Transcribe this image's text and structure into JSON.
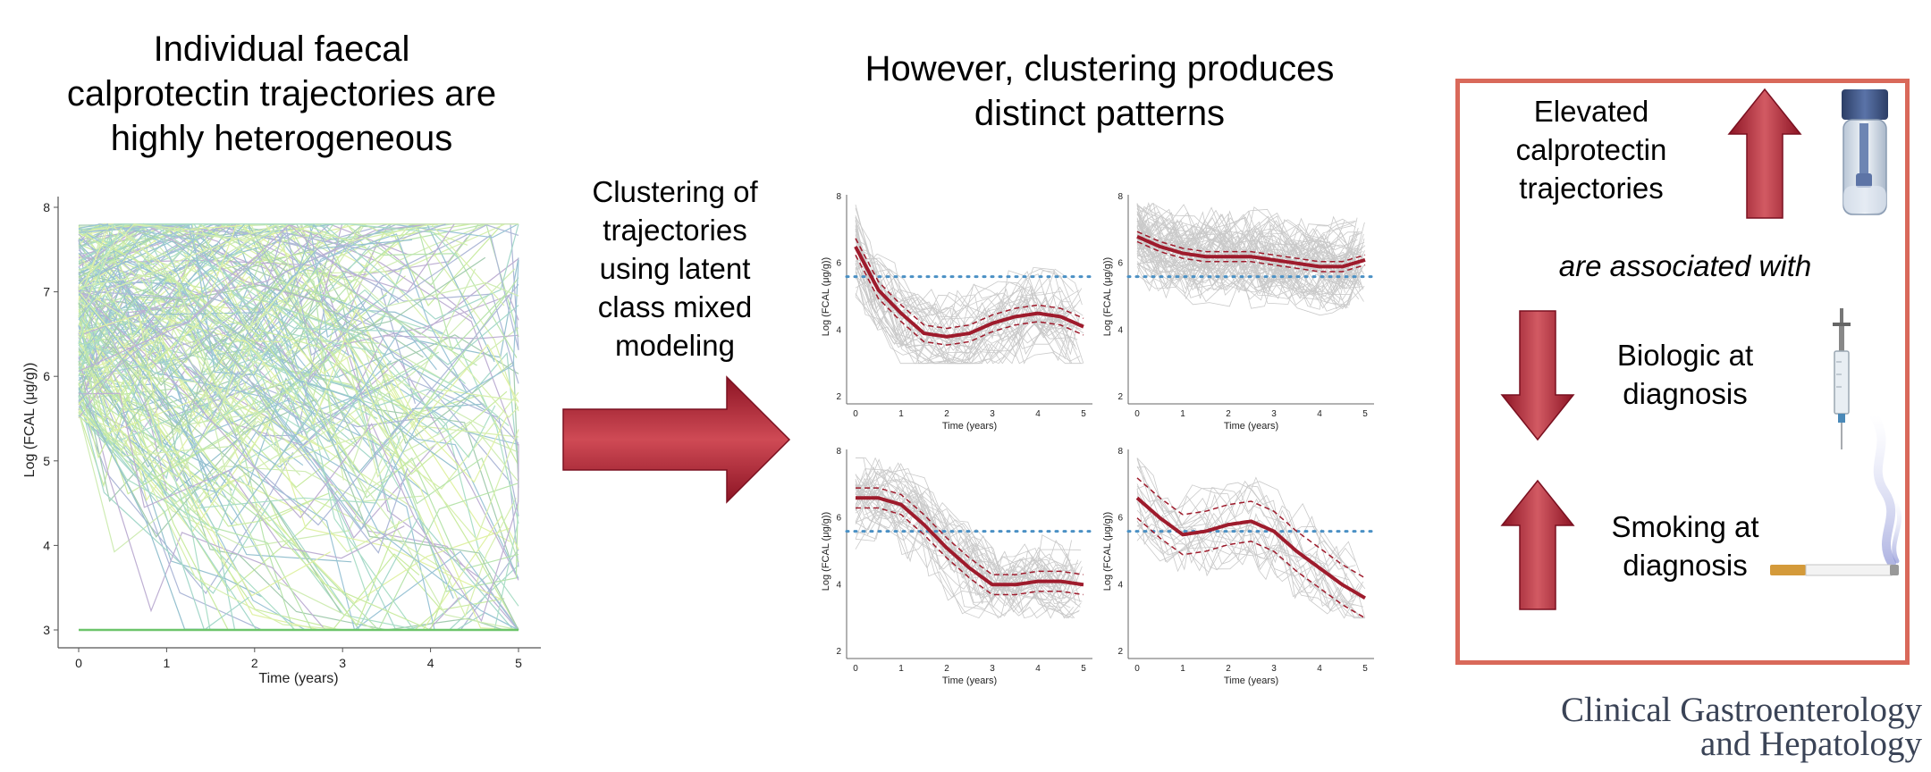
{
  "left": {
    "title_lines": [
      "Individual faecal",
      "calprotectin trajectories are",
      "highly heterogeneous"
    ],
    "chart": {
      "xlabel": "Time (years)",
      "ylabel": "Log (FCAL (μg/g))",
      "xticks": [
        "0",
        "1",
        "2",
        "3",
        "4",
        "5"
      ],
      "yticks": [
        "8",
        "7",
        "6",
        "5",
        "4",
        "3"
      ]
    }
  },
  "middle": {
    "label_lines": [
      "Clustering of",
      "trajectories",
      "using latent",
      "class mixed",
      "modeling"
    ]
  },
  "right_title_lines": [
    "However, clustering produces",
    "distinct patterns"
  ],
  "cluster_axes": {
    "xlabel": "Time (years)",
    "ylabel": "Log (FCAL (μg/g))",
    "xticks": [
      "0",
      "1",
      "2",
      "3",
      "4",
      "5"
    ],
    "yticks": [
      "8",
      "6",
      "4",
      "2"
    ]
  },
  "panel": {
    "elevated_lines": [
      "Elevated",
      "calprotectin",
      "trajectories"
    ],
    "associated": "are associated with",
    "biologic_lines": [
      "Biologic at",
      "diagnosis"
    ],
    "smoking_lines": [
      "Smoking at",
      "diagnosis"
    ],
    "border_color": "#d9695a"
  },
  "journal_lines": [
    "Clinical Gastroenterology",
    "and Hepatology"
  ],
  "colors": {
    "arrow_dark": "#9e1b2c",
    "arrow_light": "#c9454f",
    "fit_line": "#9e1b2c",
    "threshold": "#4a90c4"
  },
  "chart_data": {
    "type": "line",
    "x_range": [
      0,
      5
    ],
    "threshold": 5.6,
    "clusters": [
      {
        "mean": [
          [
            0,
            6.5
          ],
          [
            0.5,
            5.2
          ],
          [
            1,
            4.5
          ],
          [
            1.5,
            3.9
          ],
          [
            2,
            3.8
          ],
          [
            2.5,
            3.9
          ],
          [
            3,
            4.2
          ],
          [
            3.5,
            4.4
          ],
          [
            4,
            4.5
          ],
          [
            4.5,
            4.4
          ],
          [
            5,
            4.1
          ]
        ],
        "band": 0.25
      },
      {
        "mean": [
          [
            0,
            6.8
          ],
          [
            0.5,
            6.5
          ],
          [
            1,
            6.3
          ],
          [
            1.5,
            6.2
          ],
          [
            2,
            6.2
          ],
          [
            2.5,
            6.2
          ],
          [
            3,
            6.1
          ],
          [
            3.5,
            6.0
          ],
          [
            4,
            5.9
          ],
          [
            4.5,
            5.9
          ],
          [
            5,
            6.1
          ]
        ],
        "band": 0.15
      },
      {
        "mean": [
          [
            0,
            6.6
          ],
          [
            0.5,
            6.6
          ],
          [
            1,
            6.4
          ],
          [
            1.5,
            5.8
          ],
          [
            2,
            5.1
          ],
          [
            2.5,
            4.5
          ],
          [
            3,
            4.0
          ],
          [
            3.5,
            4.0
          ],
          [
            4,
            4.1
          ],
          [
            4.5,
            4.1
          ],
          [
            5,
            4.0
          ]
        ],
        "band": 0.3
      },
      {
        "mean": [
          [
            0,
            6.6
          ],
          [
            0.5,
            6.0
          ],
          [
            1,
            5.5
          ],
          [
            1.5,
            5.6
          ],
          [
            2,
            5.8
          ],
          [
            2.5,
            5.9
          ],
          [
            3,
            5.6
          ],
          [
            3.5,
            5.0
          ],
          [
            4,
            4.5
          ],
          [
            4.5,
            4.0
          ],
          [
            5,
            3.6
          ]
        ],
        "band": 0.6
      }
    ]
  }
}
